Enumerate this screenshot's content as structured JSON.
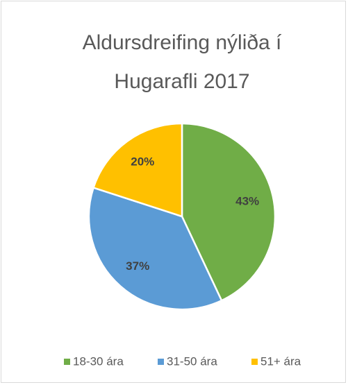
{
  "chart_data": {
    "type": "pie",
    "title": "Aldursdreifing nýliða í Hugarafli 2017",
    "categories": [
      "18-30 ára",
      "31-50 ára",
      "51+ ára"
    ],
    "values": [
      43,
      37,
      20
    ],
    "value_labels": [
      "43%",
      "37%",
      "20%"
    ],
    "colors": [
      "#70ad47",
      "#5b9bd5",
      "#ffc000"
    ],
    "legend": "bottom"
  }
}
